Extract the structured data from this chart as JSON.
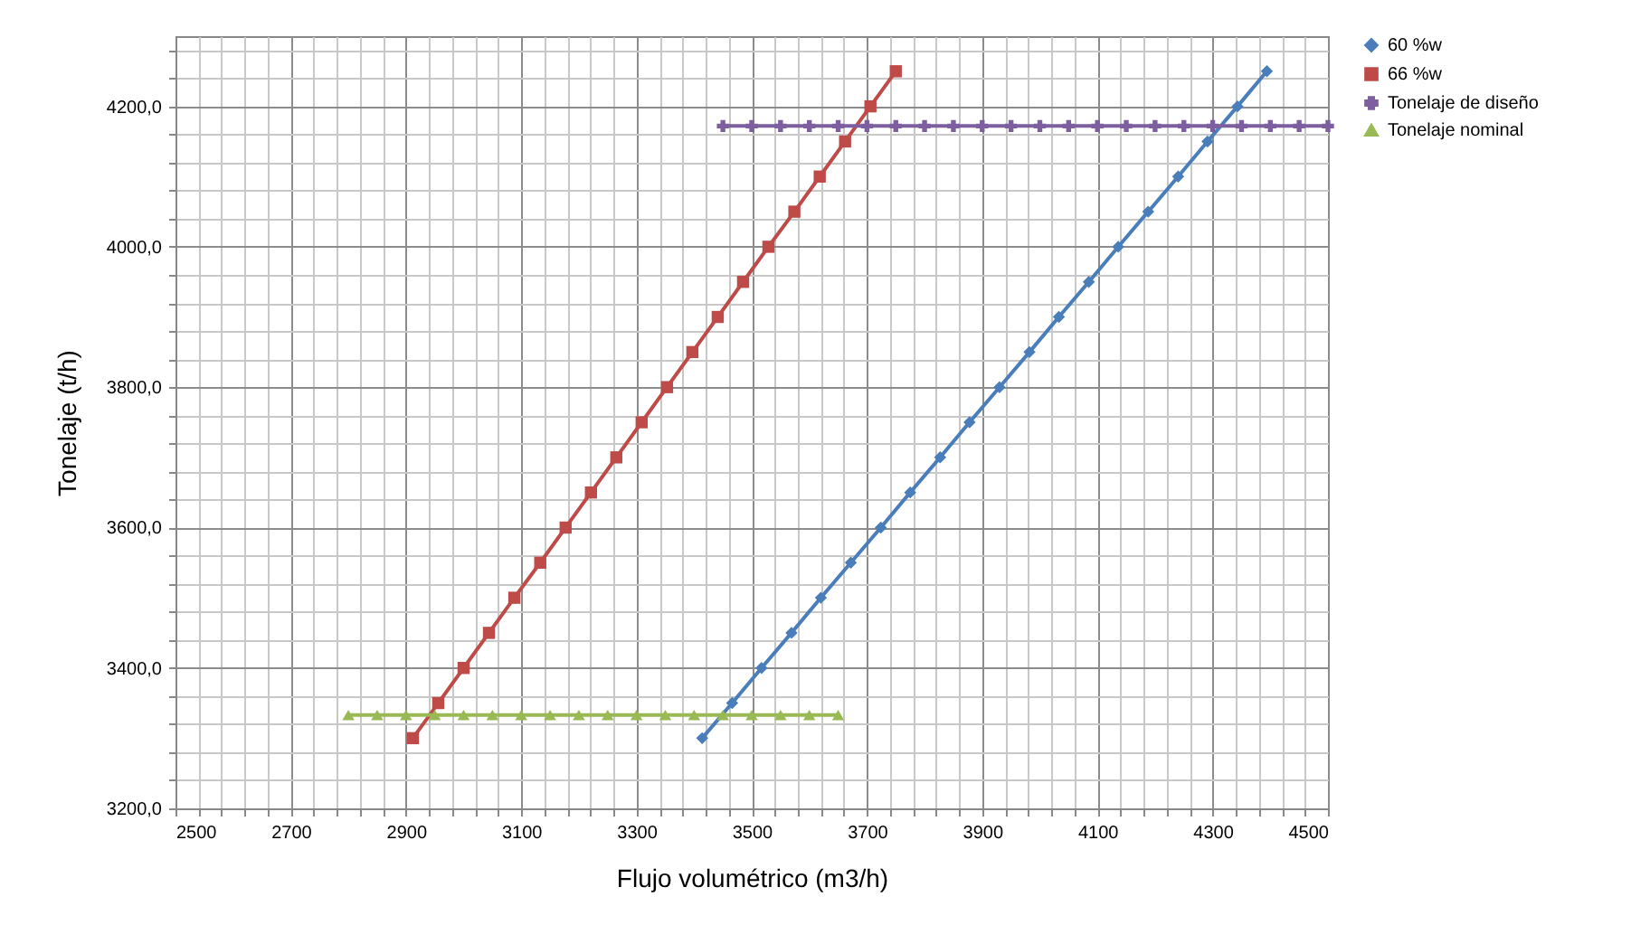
{
  "chart_data": {
    "type": "line",
    "xlabel": "Flujo volumétrico  (m3/h)",
    "ylabel": "Tonelaje  (t/h)",
    "xlim": [
      2500,
      4500
    ],
    "ylim": [
      3200,
      4300
    ],
    "xticks": [
      2500,
      {
        "value": 2540,
        "label": null
      },
      {
        "value": 2580,
        "label": null
      },
      {
        "value": 2620,
        "label": null
      },
      {
        "value": 2660,
        "label": null
      },
      2700,
      {
        "value": 2740,
        "label": null
      },
      {
        "value": 2780,
        "label": null
      },
      {
        "value": 2820,
        "label": null
      },
      {
        "value": 2860,
        "label": null
      },
      2900,
      {
        "value": 2940,
        "label": null
      },
      {
        "value": 2980,
        "label": null
      },
      {
        "value": 3020,
        "label": null
      },
      {
        "value": 3060,
        "label": null
      },
      3100,
      {
        "value": 3140,
        "label": null
      },
      {
        "value": 3180,
        "label": null
      },
      {
        "value": 3220,
        "label": null
      },
      {
        "value": 3260,
        "label": null
      },
      3300,
      {
        "value": 3340,
        "label": null
      },
      {
        "value": 3380,
        "label": null
      },
      {
        "value": 3420,
        "label": null
      },
      {
        "value": 3460,
        "label": null
      },
      3500,
      {
        "value": 3540,
        "label": null
      },
      {
        "value": 3580,
        "label": null
      },
      {
        "value": 3620,
        "label": null
      },
      {
        "value": 3660,
        "label": null
      },
      3700,
      {
        "value": 3740,
        "label": null
      },
      {
        "value": 3780,
        "label": null
      },
      {
        "value": 3820,
        "label": null
      },
      {
        "value": 3860,
        "label": null
      },
      3900,
      {
        "value": 3940,
        "label": null
      },
      {
        "value": 3980,
        "label": null
      },
      {
        "value": 4020,
        "label": null
      },
      {
        "value": 4060,
        "label": null
      },
      4100,
      {
        "value": 4140,
        "label": null
      },
      {
        "value": 4180,
        "label": null
      },
      {
        "value": 4220,
        "label": null
      },
      {
        "value": 4260,
        "label": null
      },
      4300,
      {
        "value": 4340,
        "label": null
      },
      {
        "value": 4380,
        "label": null
      },
      {
        "value": 4420,
        "label": null
      },
      {
        "value": 4460,
        "label": null
      },
      4500
    ],
    "yticks": [
      {
        "value": 3200,
        "label": "3200,0"
      },
      {
        "value": 3240,
        "label": null
      },
      {
        "value": 3280,
        "label": null
      },
      {
        "value": 3320,
        "label": null
      },
      {
        "value": 3360,
        "label": null
      },
      {
        "value": 3400,
        "label": "3400,0"
      },
      {
        "value": 3440,
        "label": null
      },
      {
        "value": 3480,
        "label": null
      },
      {
        "value": 3520,
        "label": null
      },
      {
        "value": 3560,
        "label": null
      },
      {
        "value": 3600,
        "label": "3600,0"
      },
      {
        "value": 3640,
        "label": null
      },
      {
        "value": 3680,
        "label": null
      },
      {
        "value": 3720,
        "label": null
      },
      {
        "value": 3760,
        "label": null
      },
      {
        "value": 3800,
        "label": "3800,0"
      },
      {
        "value": 3840,
        "label": null
      },
      {
        "value": 3880,
        "label": null
      },
      {
        "value": 3920,
        "label": null
      },
      {
        "value": 3960,
        "label": null
      },
      {
        "value": 4000,
        "label": "4000,0"
      },
      {
        "value": 4040,
        "label": null
      },
      {
        "value": 4080,
        "label": null
      },
      {
        "value": 4120,
        "label": null
      },
      {
        "value": 4160,
        "label": null
      },
      {
        "value": 4200,
        "label": "4200,0"
      },
      {
        "value": 4240,
        "label": null
      },
      {
        "value": 4280,
        "label": null
      }
    ],
    "grid": true,
    "legend": "right",
    "line_style": "solid",
    "series": [
      {
        "name": "60 %w",
        "color": "#4a7ebb",
        "marker": "diamond",
        "x": [
          3414,
          3466,
          3517,
          3569,
          3620,
          3672,
          3724,
          3775,
          3827,
          3878,
          3930,
          3982,
          4033,
          4085,
          4136,
          4188,
          4240,
          4291,
          4343,
          4394
        ],
        "values": [
          3300,
          3350,
          3400,
          3450,
          3500,
          3550,
          3600,
          3650,
          3700,
          3750,
          3800,
          3850,
          3900,
          3950,
          4000,
          4050,
          4100,
          4150,
          4200,
          4250
        ]
      },
      {
        "name": "66 %w",
        "color": "#be4b48",
        "marker": "square",
        "x": [
          2912,
          2956,
          3000,
          3044,
          3088,
          3133,
          3177,
          3221,
          3265,
          3309,
          3353,
          3397,
          3441,
          3485,
          3529,
          3574,
          3618,
          3662,
          3706,
          3750
        ],
        "values": [
          3300,
          3350,
          3400,
          3450,
          3500,
          3550,
          3600,
          3650,
          3700,
          3750,
          3800,
          3850,
          3900,
          3950,
          4000,
          4050,
          4100,
          4150,
          4200,
          4250
        ]
      },
      {
        "name": "Tonelaje de diseño",
        "color": "#7d5fa0",
        "marker": "cross",
        "x": [
          3450,
          3500,
          3550,
          3600,
          3650,
          3700,
          3750,
          3800,
          3850,
          3900,
          3950,
          4000,
          4050,
          4100,
          4150,
          4200,
          4250,
          4300,
          4350,
          4400,
          4450,
          4500
        ],
        "values": [
          4172,
          4172,
          4172,
          4172,
          4172,
          4172,
          4172,
          4172,
          4172,
          4172,
          4172,
          4172,
          4172,
          4172,
          4172,
          4172,
          4172,
          4172,
          4172,
          4172,
          4172,
          4172
        ]
      },
      {
        "name": "Tonelaje nominal",
        "color": "#98b954",
        "marker": "triangle",
        "x": [
          2800,
          2850,
          2900,
          2950,
          3000,
          3050,
          3100,
          3150,
          3200,
          3250,
          3300,
          3350,
          3400,
          3450,
          3500,
          3550,
          3600,
          3650
        ],
        "values": [
          3333,
          3333,
          3333,
          3333,
          3333,
          3333,
          3333,
          3333,
          3333,
          3333,
          3333,
          3333,
          3333,
          3333,
          3333,
          3333,
          3333,
          3333
        ]
      }
    ]
  }
}
